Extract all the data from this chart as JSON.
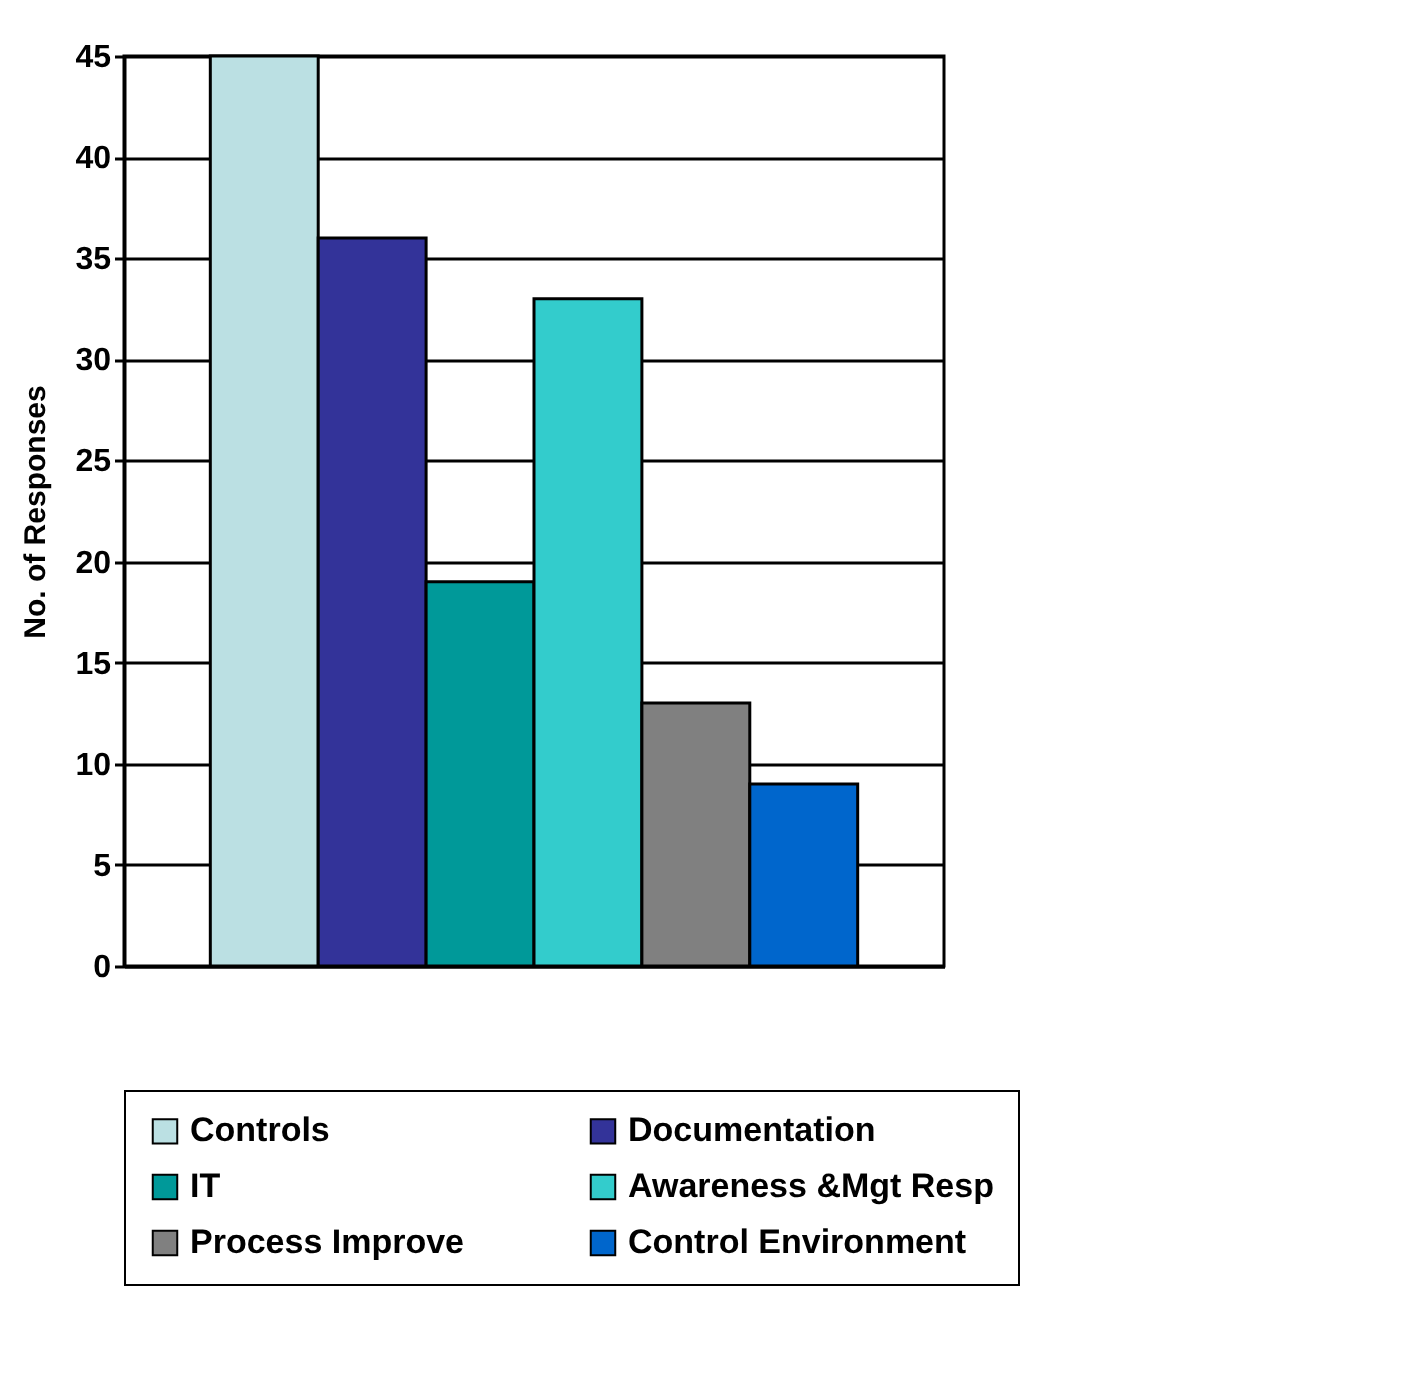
{
  "chart_data": {
    "type": "bar",
    "ylabel": "No. of Responses",
    "categories": [
      null
    ],
    "series": [
      {
        "name": "Controls",
        "color": "#bbe0e3",
        "values": [
          45
        ]
      },
      {
        "name": "Documentation",
        "color": "#333399",
        "values": [
          36
        ]
      },
      {
        "name": "IT",
        "color": "#009999",
        "values": [
          19
        ]
      },
      {
        "name": "Awareness &Mgt Resp",
        "color": "#33cccc",
        "values": [
          33
        ]
      },
      {
        "name": "Process Improve",
        "color": "#808080",
        "values": [
          13
        ]
      },
      {
        "name": "Control Environment",
        "color": "#0066cc",
        "values": [
          9
        ]
      }
    ],
    "ylim": [
      0,
      45
    ],
    "yticks": [
      0,
      5,
      10,
      15,
      20,
      25,
      30,
      35,
      40,
      45
    ],
    "grid": "y",
    "legend": "bottom"
  }
}
